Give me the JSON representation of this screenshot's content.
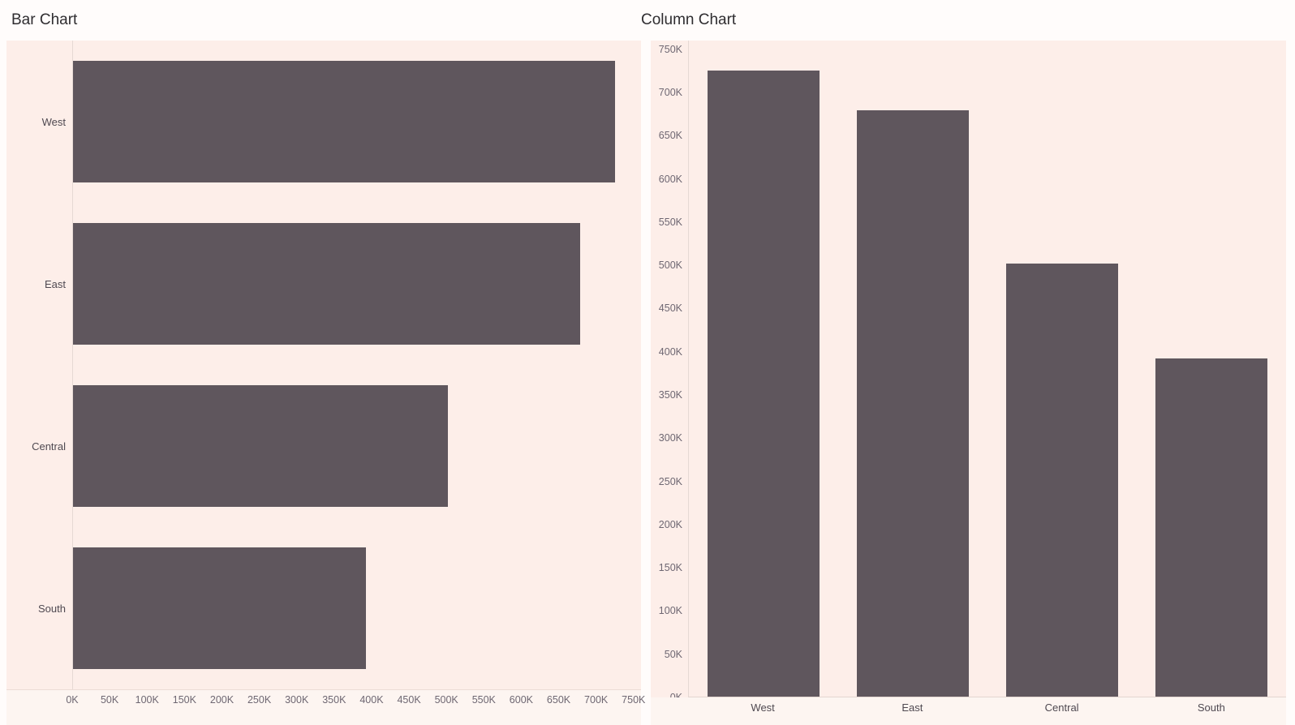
{
  "colors": {
    "bar_fill": "#5f565d",
    "plot_background": "#fdeee9",
    "axis_strip_background": "#fdf5f1",
    "page_background": "#fffcfb",
    "axis_line": "#e6d9d4",
    "tick_text": "#6e6772",
    "category_text": "#4f4951",
    "title_text": "#2f2d30"
  },
  "chart_data": [
    {
      "type": "bar",
      "orientation": "horizontal",
      "title": "Bar Chart",
      "categories": [
        "West",
        "East",
        "Central",
        "South"
      ],
      "values": [
        725458,
        678781,
        501240,
        391722
      ],
      "value_axis_ticks": [
        "0K",
        "50K",
        "100K",
        "150K",
        "200K",
        "250K",
        "300K",
        "350K",
        "400K",
        "450K",
        "500K",
        "550K",
        "600K",
        "650K",
        "700K",
        "750K"
      ],
      "tick_step": 50000,
      "axis_range": [
        0,
        760000
      ],
      "grid": false,
      "legend": "none"
    },
    {
      "type": "bar",
      "orientation": "vertical",
      "title": "Column Chart",
      "categories": [
        "West",
        "East",
        "Central",
        "South"
      ],
      "values": [
        725458,
        678781,
        501240,
        391722
      ],
      "value_axis_ticks": [
        "0K",
        "50K",
        "100K",
        "150K",
        "200K",
        "250K",
        "300K",
        "350K",
        "400K",
        "450K",
        "500K",
        "550K",
        "600K",
        "650K",
        "700K",
        "750K"
      ],
      "tick_step": 50000,
      "axis_range": [
        0,
        760000
      ],
      "grid": false,
      "legend": "none"
    }
  ]
}
